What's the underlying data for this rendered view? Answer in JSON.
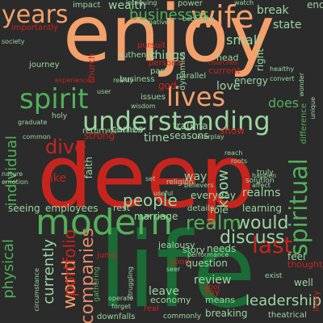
{
  "palette": {
    "background": "#2b2b2b",
    "orange": "#f4a06a",
    "red": "#c8241e",
    "green": "#52b05a",
    "dark_green": "#1a6b36",
    "light_green": "#9cd6a0",
    "salmon": "#e58a6a"
  },
  "words": [
    {
      "text": "enjoy",
      "c": "orange"
    },
    {
      "text": "deep",
      "c": "red"
    },
    {
      "text": "life",
      "c": "dark_green"
    },
    {
      "text": "modern",
      "c": "green"
    },
    {
      "text": "understanding",
      "c": "light_green"
    },
    {
      "text": "wife",
      "c": "orange"
    },
    {
      "text": "years",
      "c": "orange"
    },
    {
      "text": "spirit",
      "c": "green"
    },
    {
      "text": "lives",
      "c": "orange"
    },
    {
      "text": "spiritual",
      "c": "green"
    },
    {
      "text": "last",
      "c": "red"
    },
    {
      "text": "world",
      "c": "orange"
    },
    {
      "text": "companies",
      "c": "salmon"
    },
    {
      "text": "portfolio",
      "c": "red"
    },
    {
      "text": "would",
      "c": "light_green"
    },
    {
      "text": "discuss",
      "c": "light_green"
    },
    {
      "text": "realm",
      "c": "green"
    },
    {
      "text": "people",
      "c": "light_green"
    },
    {
      "text": "physical",
      "c": "green"
    },
    {
      "text": "currently",
      "c": "light_green"
    },
    {
      "text": "individual",
      "c": "green"
    },
    {
      "text": "dive",
      "c": "red"
    },
    {
      "text": "businesses",
      "c": "green"
    },
    {
      "text": "small",
      "c": "light_green"
    },
    {
      "text": "love",
      "c": "light_green"
    },
    {
      "text": "state",
      "c": "light_green"
    },
    {
      "text": "break",
      "c": "light_green"
    },
    {
      "text": "end",
      "c": "light_green"
    },
    {
      "text": "wealth",
      "c": "light_green"
    },
    {
      "text": "things",
      "c": "light_green"
    },
    {
      "text": "does",
      "c": "green"
    },
    {
      "text": "energy",
      "c": "light_green"
    },
    {
      "text": "know",
      "c": "light_green"
    },
    {
      "text": "leadership",
      "c": "light_green"
    },
    {
      "text": "review",
      "c": "light_green"
    },
    {
      "text": "leave",
      "c": "light_green"
    },
    {
      "text": "question",
      "c": "light_green"
    },
    {
      "text": "realms",
      "c": "light_green"
    },
    {
      "text": "learning",
      "c": "light_green"
    },
    {
      "text": "needs",
      "c": "light_green"
    },
    {
      "text": "story",
      "c": "light_green"
    },
    {
      "text": "marriage",
      "c": "light_green"
    },
    {
      "text": "role",
      "c": "light_green"
    },
    {
      "text": "way",
      "c": "light_green"
    },
    {
      "text": "time",
      "c": "light_green"
    },
    {
      "text": "comes",
      "c": "light_green"
    },
    {
      "text": "seeing",
      "c": "light_green"
    },
    {
      "text": "like",
      "c": "red"
    },
    {
      "text": "employees",
      "c": "light_green"
    },
    {
      "text": "feel",
      "c": "light_green"
    },
    {
      "text": "thoughts",
      "c": "red"
    },
    {
      "text": "well",
      "c": "light_green"
    },
    {
      "text": "jealousy",
      "c": "light_green"
    },
    {
      "text": "breaking",
      "c": "light_green"
    },
    {
      "text": "means",
      "c": "light_green"
    },
    {
      "text": "faith",
      "c": "light_green"
    },
    {
      "text": "trauma",
      "c": "light_green"
    },
    {
      "text": "seasons",
      "c": "light_green"
    },
    {
      "text": "show",
      "c": "red"
    },
    {
      "text": "rest",
      "c": "light_green"
    },
    {
      "text": "everyday",
      "c": "light_green"
    },
    {
      "text": "details",
      "c": "light_green"
    },
    {
      "text": "current",
      "c": "red"
    },
    {
      "text": "right",
      "c": "light_green"
    },
    {
      "text": "head",
      "c": "light_green"
    },
    {
      "text": "impact",
      "c": "light_green"
    },
    {
      "text": "power",
      "c": "light_green"
    },
    {
      "text": "pursuit",
      "c": "red"
    },
    {
      "text": "church",
      "c": "red"
    },
    {
      "text": "authentic",
      "c": "light_green"
    },
    {
      "text": "personal",
      "c": "red"
    },
    {
      "text": "past",
      "c": "light_green"
    },
    {
      "text": "business",
      "c": "light_green"
    },
    {
      "text": "issues",
      "c": "light_green"
    },
    {
      "text": "god",
      "c": "red"
    },
    {
      "text": "parallel",
      "c": "light_green"
    },
    {
      "text": "journey",
      "c": "light_green"
    },
    {
      "text": "importantly",
      "c": "red"
    },
    {
      "text": "society",
      "c": "light_green"
    },
    {
      "text": "holy",
      "c": "light_green"
    },
    {
      "text": "strong",
      "c": "red"
    },
    {
      "text": "religion",
      "c": "light_green"
    },
    {
      "text": "nature",
      "c": "light_green"
    },
    {
      "text": "emotion",
      "c": "light_green"
    },
    {
      "text": "economy",
      "c": "light_green"
    },
    {
      "text": "real",
      "c": "red"
    },
    {
      "text": "commonly",
      "c": "light_green"
    },
    {
      "text": "theatrical",
      "c": "light_green"
    },
    {
      "text": "downfalls",
      "c": "light_green"
    },
    {
      "text": "labor",
      "c": "red"
    },
    {
      "text": "day",
      "c": "red"
    },
    {
      "text": "good",
      "c": "red"
    },
    {
      "text": "likely",
      "c": "red"
    },
    {
      "text": "exist",
      "c": "light_green"
    },
    {
      "text": "truly",
      "c": "light_green"
    },
    {
      "text": "solution",
      "c": "light_green"
    },
    {
      "text": "dynamics",
      "c": "light_green"
    },
    {
      "text": "difference",
      "c": "green"
    },
    {
      "text": "gathering",
      "c": "green"
    },
    {
      "text": "unique",
      "c": "light_green"
    },
    {
      "text": "user",
      "c": "light_green"
    },
    {
      "text": "return",
      "c": "light_green"
    },
    {
      "text": "wisdom",
      "c": "light_green"
    },
    {
      "text": "application",
      "c": "light_green"
    },
    {
      "text": "interplay",
      "c": "light_green"
    },
    {
      "text": "churches",
      "c": "red"
    },
    {
      "text": "healthy",
      "c": "light_green"
    },
    {
      "text": "convert",
      "c": "light_green"
    },
    {
      "text": "becoming",
      "c": "light_green"
    },
    {
      "text": "watch",
      "c": "light_green"
    },
    {
      "text": "wonder",
      "c": "light_green"
    },
    {
      "text": "intriguing",
      "c": "light_green"
    },
    {
      "text": "negative",
      "c": "light_green"
    },
    {
      "text": "experienced",
      "c": "red"
    },
    {
      "text": "reality",
      "c": "light_green"
    },
    {
      "text": "graduate",
      "c": "light_green"
    },
    {
      "text": "common",
      "c": "light_green"
    },
    {
      "text": "useful",
      "c": "light_green"
    },
    {
      "text": "set",
      "c": "light_green"
    },
    {
      "text": "seer",
      "c": "light_green"
    },
    {
      "text": "reach",
      "c": "light_green"
    },
    {
      "text": "roots",
      "c": "light_green"
    },
    {
      "text": "affect",
      "c": "light_green"
    },
    {
      "text": "happen",
      "c": "light_green"
    },
    {
      "text": "believers",
      "c": "light_green"
    },
    {
      "text": "performance",
      "c": "light_green"
    },
    {
      "text": "operate",
      "c": "light_green"
    },
    {
      "text": "forget",
      "c": "light_green"
    },
    {
      "text": "struggling",
      "c": "light_green"
    },
    {
      "text": "jump",
      "c": "red"
    },
    {
      "text": "circumstance",
      "c": "light_green"
    }
  ]
}
